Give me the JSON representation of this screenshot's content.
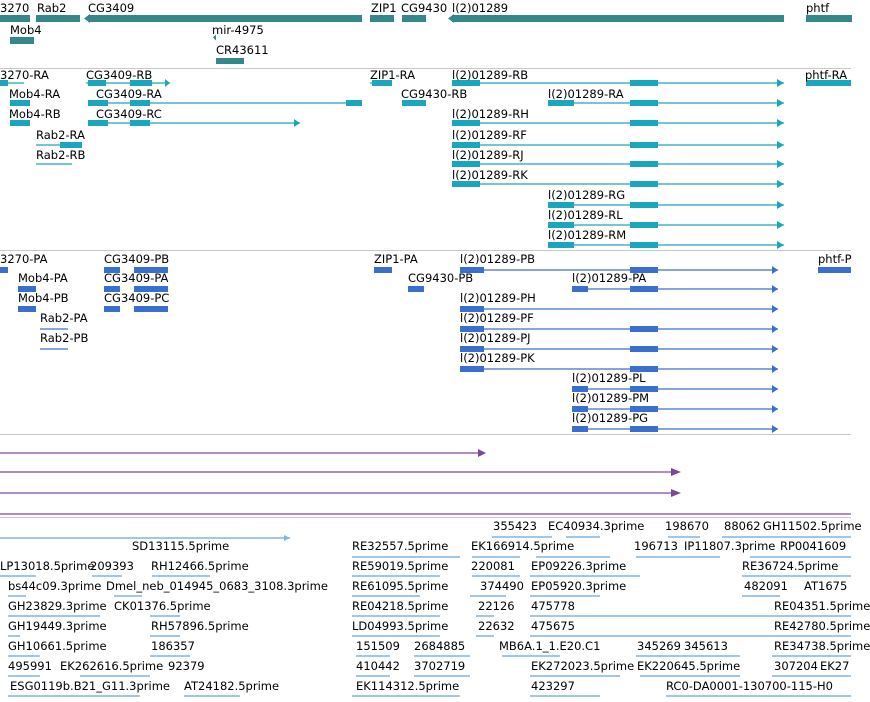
{
  "colors": {
    "gene": "#35888a",
    "transcript": "#1aa7bd",
    "protein": "#3a6fd0",
    "alignment": "#7a4a9a",
    "est": "#7fb6dd",
    "separator": "#c8c8c8"
  },
  "gene_track": {
    "labels": {
      "g1": "3270",
      "g2": "Rab2",
      "g3": "CG3409",
      "g4": "ZIP1",
      "g5": "CG9430",
      "g6": "l(2)01289",
      "g7": "phtf",
      "g8": "Mob4",
      "g9": "mir-4975",
      "g10": "CR43611"
    }
  },
  "transcript_track": {
    "labels": {
      "t1": "3270-RA",
      "t2": "CG3409-RB",
      "t3": "ZIP1-RA",
      "t4": "l(2)01289-RB",
      "t5": "phtf-RA",
      "t6": "Mob4-RA",
      "t7": "CG3409-RA",
      "t8": "CG9430-RB",
      "t9": "l(2)01289-RA",
      "t10": "Mob4-RB",
      "t11": "CG3409-RC",
      "t12": "l(2)01289-RH",
      "t13": "Rab2-RA",
      "t14": "l(2)01289-RF",
      "t15": "Rab2-RB",
      "t16": "l(2)01289-RJ",
      "t17": "l(2)01289-RK",
      "t18": "l(2)01289-RG",
      "t19": "l(2)01289-RL",
      "t20": "l(2)01289-RM"
    }
  },
  "protein_track": {
    "labels": {
      "p1": "3270-PA",
      "p2": "CG3409-PB",
      "p3": "ZIP1-PA",
      "p4": "l(2)01289-PB",
      "p5": "phtf-P",
      "p6": "Mob4-PA",
      "p7": "CG3409-PA",
      "p8": "CG9430-PB",
      "p9": "l(2)01289-PA",
      "p10": "Mob4-PB",
      "p11": "CG3409-PC",
      "p12": "l(2)01289-PH",
      "p13": "Rab2-PA",
      "p14": "l(2)01289-PF",
      "p15": "Rab2-PB",
      "p16": "l(2)01289-PJ",
      "p17": "l(2)01289-PK",
      "p18": "l(2)01289-PL",
      "p19": "l(2)01289-PM",
      "p20": "l(2)01289-PG"
    }
  },
  "est_track": {
    "labels": {
      "e1": "355423",
      "e2": "EC40934.3prime",
      "e3": "198670",
      "e4": "88062",
      "e5": "GH11502.5prime",
      "e6": "SD13115.5prime",
      "e7": "RE32557.5prime",
      "e8": "EK166914.5prime",
      "e9": "196713",
      "e10": "IP11807.3prime",
      "e11": "RP0041609",
      "e12": "LP13018.5prime",
      "e13": "209393",
      "e14": "RH12466.5prime",
      "e15": "RE59019.5prime",
      "e16": "220081",
      "e17": "EP09226.3prime",
      "e18": "RE36724.5prime",
      "e19": "bs44c09.3prime",
      "e20": "Dmel_neb_014945_0683_3108.3prime",
      "e21": "RE61095.5prime",
      "e22": "374490",
      "e23": "EP05920.3prime",
      "e24": "482091",
      "e25": "AT1675",
      "e26": "GH23829.3prime",
      "e27": "CK01376.5prime",
      "e28": "RE04218.5prime",
      "e29": "22126",
      "e30": "475778",
      "e31": "RE04351.5prime",
      "e32": "GH19449.3prime",
      "e33": "RH57896.5prime",
      "e34": "LD04993.5prime",
      "e35": "22632",
      "e36": "475675",
      "e37": "RE42780.5prime",
      "e38": "GH10661.5prime",
      "e39": "186357",
      "e40": "151509",
      "e41": "2684885",
      "e42": "MB6A.1_1.E20.C1",
      "e43": "345269",
      "e44": "345613",
      "e45": "RE34738.5prime",
      "e46": "495991",
      "e47": "EK262616.5prime",
      "e48": "92379",
      "e49": "410442",
      "e50": "3702719",
      "e51": "EK272023.5prime",
      "e52": "EK220645.5prime",
      "e53": "307204",
      "e54": "EK27",
      "e55": "ESG0119b.B21_G11.3prime",
      "e56": "AT24182.5prime",
      "e57": "EK114312.5prime",
      "e58": "423297",
      "e59": "RC0-DA0001-130700-115-H0"
    }
  }
}
